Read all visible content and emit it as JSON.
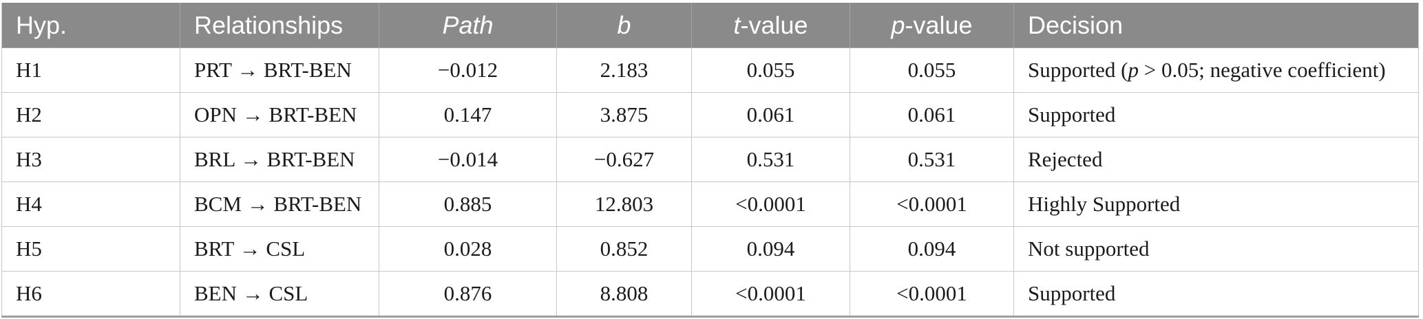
{
  "table": {
    "header": {
      "hyp": "Hyp.",
      "relationships": "Relationships",
      "path": "Path",
      "b": "b",
      "t_italic": "t",
      "t_rest": "-value",
      "p_italic": "p",
      "p_rest": "-value",
      "decision": "Decision"
    },
    "rows": [
      {
        "hyp": "H1",
        "relationship": "PRT → BRT-BEN",
        "path": "−0.012",
        "b": "2.183",
        "t": "0.055",
        "p": "0.055",
        "decision_parts": [
          "Supported (",
          "p",
          " > 0.05; negative coefficient)"
        ]
      },
      {
        "hyp": "H2",
        "relationship": "OPN → BRT-BEN",
        "path": "0.147",
        "b": "3.875",
        "t": "0.061",
        "p": "0.061",
        "decision": "Supported"
      },
      {
        "hyp": "H3",
        "relationship": "BRL → BRT-BEN",
        "path": "−0.014",
        "b": "−0.627",
        "t": "0.531",
        "p": "0.531",
        "decision": "Rejected"
      },
      {
        "hyp": "H4",
        "relationship": "BCM → BRT-BEN",
        "path": "0.885",
        "b": "12.803",
        "t": "<0.0001",
        "p": "<0.0001",
        "decision": "Highly Supported"
      },
      {
        "hyp": "H5",
        "relationship": "BRT → CSL",
        "path": "0.028",
        "b": "0.852",
        "t": "0.094",
        "p": "0.094",
        "decision": "Not supported"
      },
      {
        "hyp": "H6",
        "relationship": "BEN → CSL",
        "path": "0.876",
        "b": "8.808",
        "t": "<0.0001",
        "p": "<0.0001",
        "decision": "Supported"
      }
    ],
    "colors": {
      "header_bg": "#8a8a8a",
      "header_text": "#ffffff",
      "header_divider": "#a4a4a4",
      "body_text": "#1b1b1b",
      "grid_line": "#c7c7c7",
      "bottom_border": "#9d9d9d"
    }
  }
}
